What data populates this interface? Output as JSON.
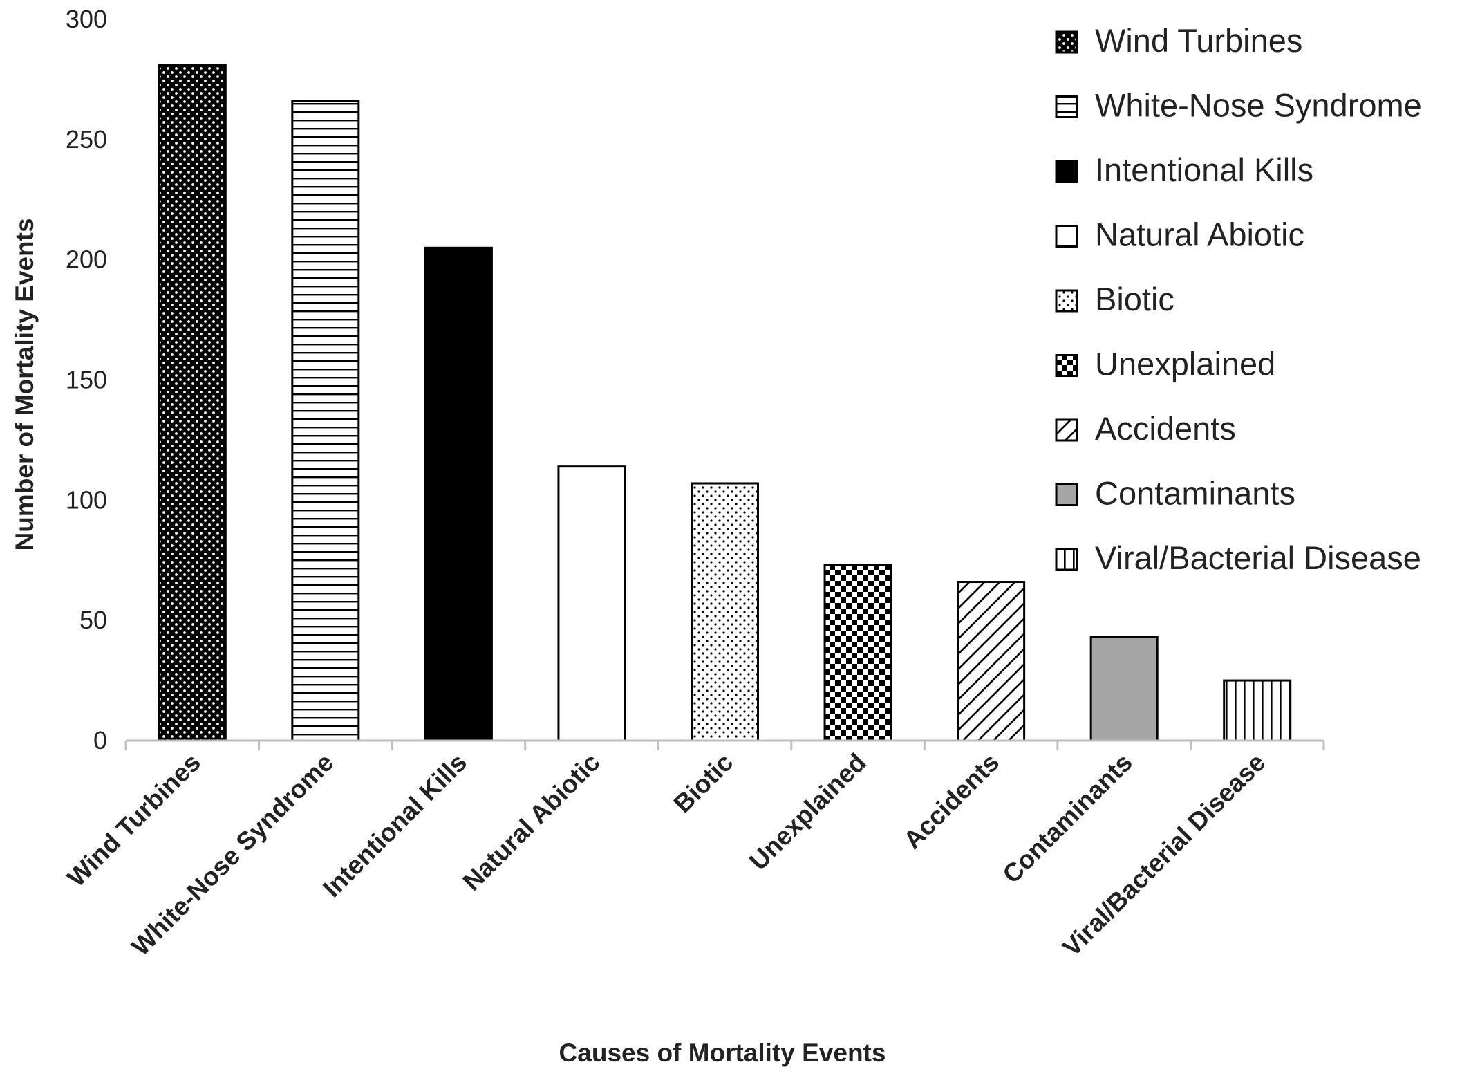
{
  "chart_data": {
    "type": "bar",
    "title": "",
    "xlabel": "Causes of Mortality Events",
    "ylabel": "Number of Mortality Events",
    "ylim": [
      0,
      300
    ],
    "yticks": [
      0,
      50,
      100,
      150,
      200,
      250,
      300
    ],
    "grid": false,
    "legend_position": "top-right",
    "categories": [
      "Wind Turbines",
      "White-Nose Syndrome",
      "Intentional Kills",
      "Natural Abiotic",
      "Biotic",
      "Unexplained",
      "Accidents",
      "Contaminants",
      "Viral/Bacterial Disease"
    ],
    "values": [
      281,
      266,
      205,
      114,
      107,
      73,
      66,
      43,
      25
    ],
    "patterns": [
      "dark-dots",
      "horizontal-lines",
      "solid-black",
      "white",
      "light-dots",
      "checkerboard",
      "diagonal-lines",
      "solid-gray",
      "vertical-lines"
    ],
    "legend": [
      "Wind Turbines",
      "White-Nose Syndrome",
      "Intentional Kills",
      "Natural Abiotic",
      "Biotic",
      "Unexplained",
      "Accidents",
      "Contaminants",
      "Viral/Bacterial Disease"
    ],
    "colors": {
      "stroke": "#000000",
      "black": "#000000",
      "gray": "#a6a6a6",
      "axis": "#bfbfbf",
      "background": "#ffffff"
    }
  }
}
